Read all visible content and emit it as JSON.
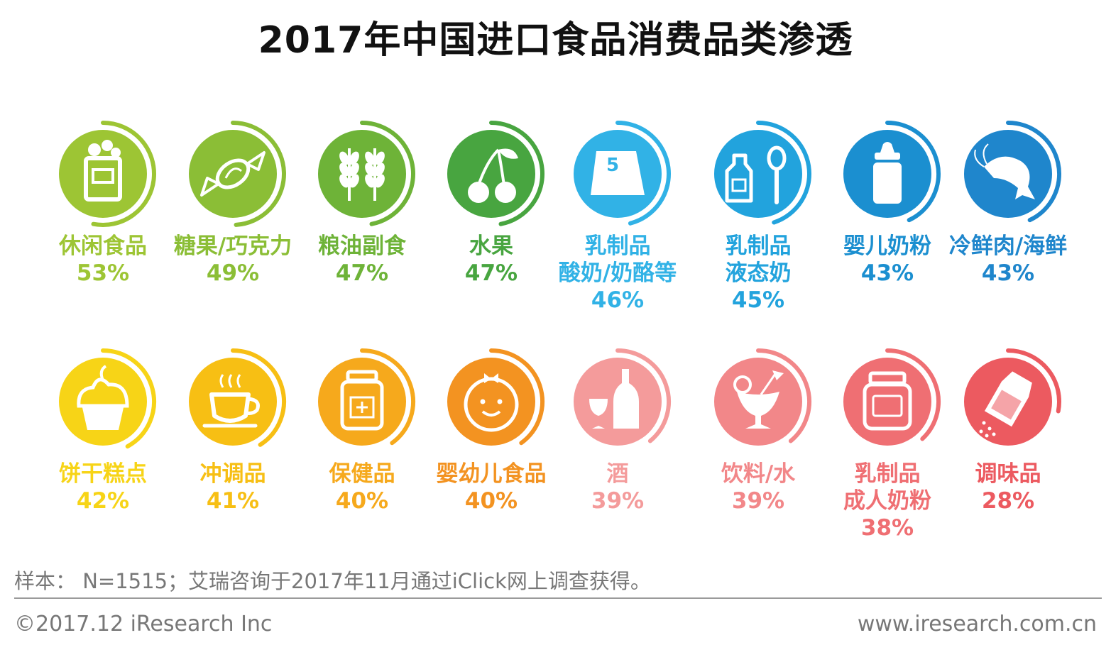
{
  "header": {
    "title": "2017年中国进口食品消费品类渗透"
  },
  "chart_data": {
    "type": "icon-percentage-grid",
    "title": "2017年中国进口食品消费品类渗透",
    "unit": "%",
    "items": [
      {
        "name_lines": [
          "休闲食品"
        ],
        "value": 53,
        "value_label": "53%",
        "icon": "snack-bag-icon",
        "color": "#9DC534"
      },
      {
        "name_lines": [
          "糖果/巧克力"
        ],
        "value": 49,
        "value_label": "49%",
        "icon": "candy-icon",
        "color": "#8BBE36"
      },
      {
        "name_lines": [
          "粮油副食"
        ],
        "value": 47,
        "value_label": "47%",
        "icon": "wheat-icon",
        "color": "#6EB338"
      },
      {
        "name_lines": [
          "水果"
        ],
        "value": 47,
        "value_label": "47%",
        "icon": "cherry-icon",
        "color": "#48A540"
      },
      {
        "name_lines": [
          "乳制品",
          "酸奶/奶酪等"
        ],
        "value": 46,
        "value_label": "46%",
        "icon": "cheese-icon",
        "color": "#31B2E6"
      },
      {
        "name_lines": [
          "乳制品",
          "液态奶"
        ],
        "value": 45,
        "value_label": "45%",
        "icon": "milk-bottle-icon",
        "color": "#22A3DD"
      },
      {
        "name_lines": [
          "婴儿奶粉"
        ],
        "value": 43,
        "value_label": "43%",
        "icon": "baby-bottle-icon",
        "color": "#1B8FD0"
      },
      {
        "name_lines": [
          "冷鲜肉/海鲜"
        ],
        "value": 43,
        "value_label": "43%",
        "icon": "shrimp-icon",
        "color": "#1F86CC"
      },
      {
        "name_lines": [
          "饼干糕点"
        ],
        "value": 42,
        "value_label": "42%",
        "icon": "cupcake-icon",
        "color": "#F7D417"
      },
      {
        "name_lines": [
          "冲调品"
        ],
        "value": 41,
        "value_label": "41%",
        "icon": "coffee-cup-icon",
        "color": "#F7BF14"
      },
      {
        "name_lines": [
          "保健品"
        ],
        "value": 40,
        "value_label": "40%",
        "icon": "supplement-jar-icon",
        "color": "#F6A91C"
      },
      {
        "name_lines": [
          "婴幼儿食品"
        ],
        "value": 40,
        "value_label": "40%",
        "icon": "baby-face-icon",
        "color": "#F39321"
      },
      {
        "name_lines": [
          "酒"
        ],
        "value": 39,
        "value_label": "39%",
        "icon": "wine-icon",
        "color": "#F49B9B"
      },
      {
        "name_lines": [
          "饮料/水"
        ],
        "value": 39,
        "value_label": "39%",
        "icon": "cocktail-icon",
        "color": "#F28789"
      },
      {
        "name_lines": [
          "乳制品",
          "成人奶粉"
        ],
        "value": 38,
        "value_label": "38%",
        "icon": "formula-can-icon",
        "color": "#EF6F73"
      },
      {
        "name_lines": [
          "调味品"
        ],
        "value": 28,
        "value_label": "28%",
        "icon": "salt-shaker-icon",
        "color": "#EC5A60"
      }
    ]
  },
  "note": "样本： N=1515；艾瑞咨询于2017年11月通过iClick网上调查获得。",
  "footer": {
    "copyright": "©2017.12 iResearch Inc",
    "website": "www.iresearch.com.cn"
  }
}
